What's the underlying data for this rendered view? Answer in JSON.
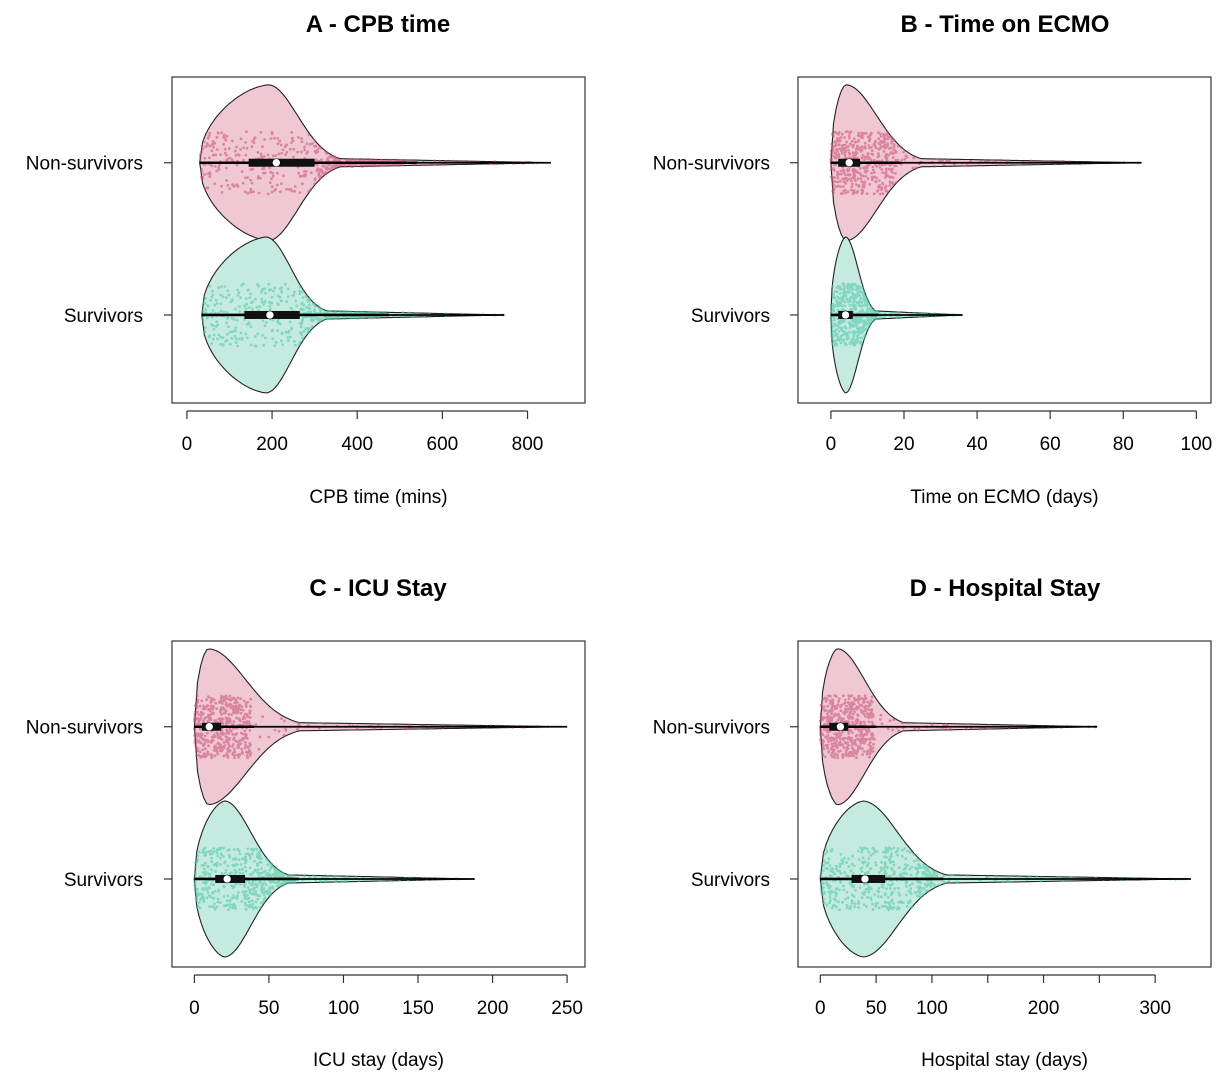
{
  "colors": {
    "non_survivors_fill": "#f0c8d4",
    "non_survivors_points": "#c94f77",
    "survivors_fill": "#c5ebe0",
    "survivors_points": "#4cc7a6",
    "box": "#111111",
    "median": "#ffffff"
  },
  "chart_data": [
    {
      "type": "violin",
      "title": "A - CPB time",
      "xlabel": "CPB time (mins)",
      "categories": [
        "Non-survivors",
        "Survivors"
      ],
      "xlim": [
        -35,
        935
      ],
      "xticks": [
        0,
        200,
        400,
        600,
        800
      ],
      "series": [
        {
          "name": "Non-survivors",
          "min": 30,
          "q1": 145,
          "median": 210,
          "q3": 300,
          "whisker_high": 540,
          "max": 855,
          "peak": 190
        },
        {
          "name": "Survivors",
          "min": 35,
          "q1": 135,
          "median": 195,
          "q3": 265,
          "whisker_high": 475,
          "max": 745,
          "peak": 185
        }
      ]
    },
    {
      "type": "violin",
      "title": "B - Time on ECMO",
      "xlabel": "Time on ECMO (days)",
      "categories": [
        "Non-survivors",
        "Survivors"
      ],
      "xlim": [
        -9,
        104
      ],
      "xticks": [
        0,
        20,
        40,
        60,
        80,
        100
      ],
      "series": [
        {
          "name": "Non-survivors",
          "min": 0,
          "q1": 2,
          "median": 5,
          "q3": 8,
          "whisker_high": 19,
          "max": 85,
          "peak": 4
        },
        {
          "name": "Survivors",
          "min": 0,
          "q1": 2,
          "median": 4,
          "q3": 6,
          "whisker_high": 13,
          "max": 36,
          "peak": 4
        }
      ]
    },
    {
      "type": "violin",
      "title": "C - ICU Stay",
      "xlabel": "ICU stay (days)",
      "categories": [
        "Non-survivors",
        "Survivors"
      ],
      "xlim": [
        -15,
        262
      ],
      "xticks": [
        0,
        50,
        100,
        150,
        200,
        250
      ],
      "series": [
        {
          "name": "Non-survivors",
          "min": 0,
          "q1": 5,
          "median": 10,
          "q3": 18,
          "whisker_high": 40,
          "max": 250,
          "peak": 9
        },
        {
          "name": "Survivors",
          "min": 0,
          "q1": 14,
          "median": 22,
          "q3": 34,
          "whisker_high": 70,
          "max": 188,
          "peak": 20
        }
      ]
    },
    {
      "type": "violin",
      "title": "D - Hospital Stay",
      "xlabel": "Hospital stay (days)",
      "categories": [
        "Non-survivors",
        "Survivors"
      ],
      "xlim": [
        -20,
        350
      ],
      "xticks": [
        0,
        50,
        100,
        200,
        300
      ],
      "minor_ticks": [
        150,
        250
      ],
      "series": [
        {
          "name": "Non-survivors",
          "min": 0,
          "q1": 8,
          "median": 18,
          "q3": 25,
          "whisker_high": 50,
          "max": 248,
          "peak": 15
        },
        {
          "name": "Survivors",
          "min": 0,
          "q1": 28,
          "median": 40,
          "q3": 58,
          "whisker_high": 110,
          "max": 332,
          "peak": 38
        }
      ]
    }
  ]
}
